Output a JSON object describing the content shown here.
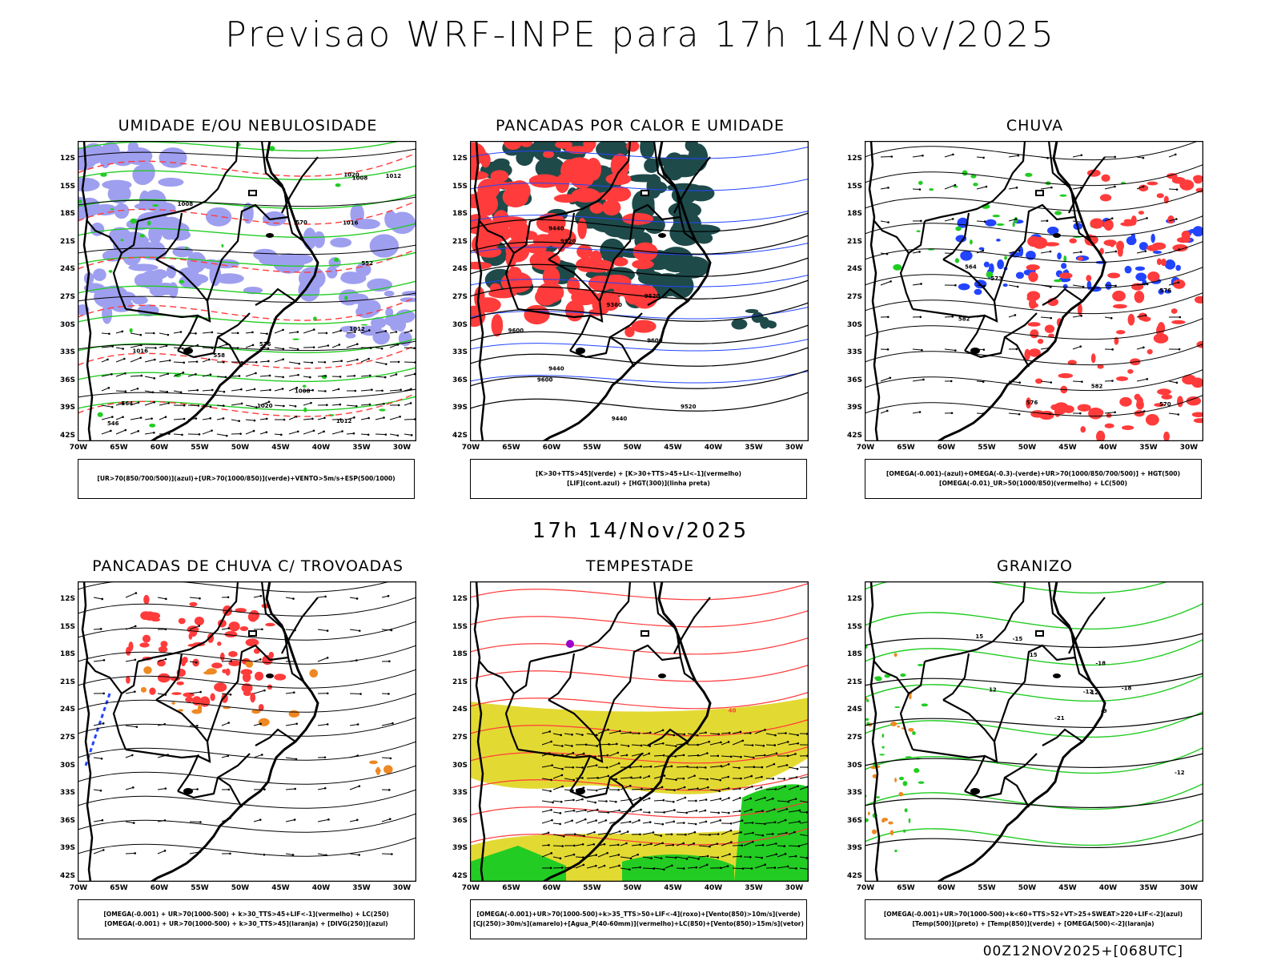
{
  "header": {
    "title": "Previsao WRF-INPE  para 17h 14/Nov/2025"
  },
  "subtitle": "17h 14/Nov/2025",
  "footer": "00Z12NOV2025+[068UTC]",
  "axes": {
    "lat_labels": [
      "12S",
      "15S",
      "18S",
      "21S",
      "24S",
      "27S",
      "30S",
      "33S",
      "36S",
      "39S",
      "42S"
    ],
    "lon_labels": [
      "70W",
      "65W",
      "60W",
      "55W",
      "50W",
      "45W",
      "40W",
      "35W",
      "30W"
    ]
  },
  "colors": {
    "green": "#22cc22",
    "red": "#ff3b3b",
    "blue": "#2244ff",
    "lavender": "#9f9ff0",
    "darkteal": "#1e4a4a",
    "orange": "#ee8822",
    "yellow": "#e3d933",
    "purple": "#9900cc"
  },
  "panels": [
    {
      "title": "UMIDADE E/OU NEBULOSIDADE",
      "legend": [
        "[UR>70(850/700/500)](azul)+[UR>70(1000/850)](verde)+VENTO>5m/s+ESP(500/1000)"
      ],
      "contour_labels": [
        "1008",
        "1008",
        "1012",
        "1012",
        "1016",
        "1020",
        "1020",
        "1012",
        "1008",
        "1016",
        "576",
        "570",
        "564",
        "558",
        "552",
        "546"
      ]
    },
    {
      "title": "PANCADAS POR CALOR E UMIDADE",
      "legend": [
        "[K>30+TTS>45](verde) + [K>30+TTS>45+LI<-1](vermelho)",
        "[LIF](cont.azul) + [HGT(300)](linha preta)"
      ],
      "contour_labels": [
        "9600",
        "9520",
        "9600",
        "9600",
        "9520",
        "9440",
        "9440",
        "9360",
        "9440",
        "9520"
      ]
    },
    {
      "title": "CHUVA",
      "legend": [
        "[OMEGA(-0.001)-(azul)+OMEGA(-0.3)-(verde)+UR>70(1000/850/700/500)] + HGT(500)",
        "[OMEGA(-0.01)_UR>50(1000/850)(vermelho) + LC(500)"
      ],
      "contour_labels": [
        "582",
        "582",
        "576",
        "576",
        "570",
        "564",
        "573"
      ]
    },
    {
      "title": "PANCADAS DE CHUVA C/ TROVOADAS",
      "legend": [
        "[OMEGA(-0.001) + UR>70(1000-500) + k>30_TTS>45+LIF<-1](vermelho) + LC(250)",
        "[OMEGA(-0.001) + UR>70(1000-500) + k>30_TTS>45](laranja) + [DIVG(250)](azul)"
      ],
      "contour_labels": []
    },
    {
      "title": "TEMPESTADE",
      "legend": [
        "[OMEGA(-0.001)+UR>70(1000-500)+k>35_TTS>50+LIF<-4](roxo)+[Vento(850)>10m/s](verde)",
        "[CJ(250)>30m/s](amarelo)+[Agua_P(40-60mm)](vermelho)+LC(850)+[Vento(850)>15m/s](vetor)"
      ],
      "contour_labels": [
        "40"
      ]
    },
    {
      "title": "GRANIZO",
      "legend": [
        "[OMEGA(-0.001)+UR>70(1000-500)+k<60+TTS>52+VT>25+SWEAT>220+LIF<-2](azul)",
        "[Temp(500)](preto) + [Temp(850)](verde) + [OMEGA(500)<-2](laranja)"
      ],
      "contour_labels": [
        "-9",
        "-12",
        "-15",
        "-18",
        "-21",
        "-12",
        "-18",
        "12",
        "15",
        "15",
        "12"
      ]
    }
  ]
}
